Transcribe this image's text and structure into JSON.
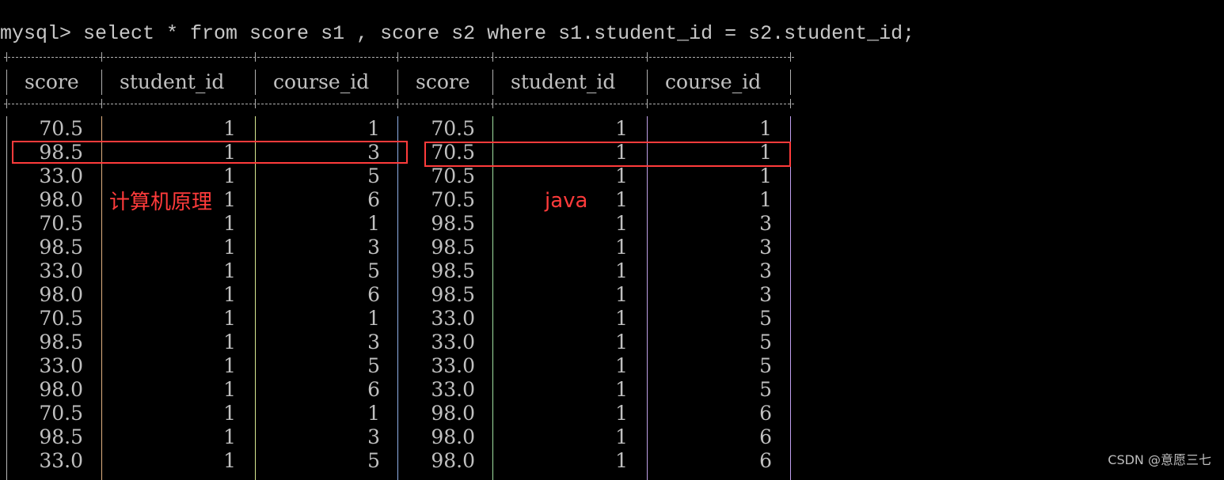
{
  "query": "mysql> select * from score s1 , score s2 where s1.student_id = s2.student_id;",
  "columns": [
    "score",
    "student_id",
    "course_id",
    "score",
    "student_id",
    "course_id"
  ],
  "rows": [
    [
      "70.5",
      "1",
      "1",
      "70.5",
      "1",
      "1"
    ],
    [
      "98.5",
      "1",
      "3",
      "70.5",
      "1",
      "1"
    ],
    [
      "33.0",
      "1",
      "5",
      "70.5",
      "1",
      "1"
    ],
    [
      "98.0",
      "1",
      "6",
      "70.5",
      "1",
      "1"
    ],
    [
      "70.5",
      "1",
      "1",
      "98.5",
      "1",
      "3"
    ],
    [
      "98.5",
      "1",
      "3",
      "98.5",
      "1",
      "3"
    ],
    [
      "33.0",
      "1",
      "5",
      "98.5",
      "1",
      "3"
    ],
    [
      "98.0",
      "1",
      "6",
      "98.5",
      "1",
      "3"
    ],
    [
      "70.5",
      "1",
      "1",
      "33.0",
      "1",
      "5"
    ],
    [
      "98.5",
      "1",
      "3",
      "33.0",
      "1",
      "5"
    ],
    [
      "33.0",
      "1",
      "5",
      "33.0",
      "1",
      "5"
    ],
    [
      "98.0",
      "1",
      "6",
      "33.0",
      "1",
      "5"
    ],
    [
      "70.5",
      "1",
      "1",
      "98.0",
      "1",
      "6"
    ],
    [
      "98.5",
      "1",
      "3",
      "98.0",
      "1",
      "6"
    ],
    [
      "33.0",
      "1",
      "5",
      "98.0",
      "1",
      "6"
    ]
  ],
  "annotations": {
    "left": "计算机原理",
    "right": "java",
    "color": "#ff3b3b"
  },
  "watermark": "CSDN @意愿三七"
}
